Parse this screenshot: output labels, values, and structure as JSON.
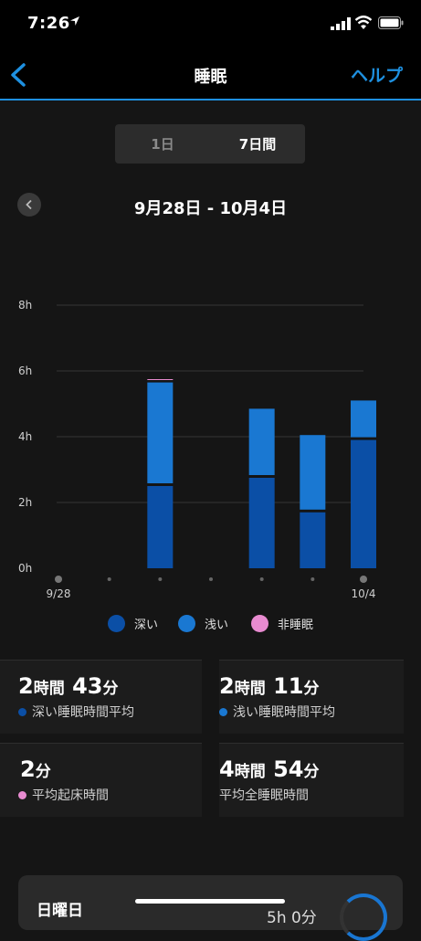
{
  "status_bar": {
    "time": "7:26"
  },
  "nav": {
    "title": "睡眠",
    "help_label": "ヘルプ"
  },
  "segment": {
    "day_label": "1日",
    "week_label": "7日間"
  },
  "date_range": "9月28日 - 10月4日",
  "chart_data": {
    "type": "bar",
    "stacked": true,
    "categories": [
      "9/28",
      "9/29",
      "9/30",
      "10/1",
      "10/2",
      "10/3",
      "10/4"
    ],
    "x_tick_labels_shown": [
      "9/28",
      "10/4"
    ],
    "ylim": [
      0,
      8
    ],
    "yticks": [
      0,
      2,
      4,
      6,
      8
    ],
    "ytick_labels": [
      "0h",
      "2h",
      "4h",
      "6h",
      "8h"
    ],
    "grid": true,
    "series": [
      {
        "name": "深い",
        "color": "#0b4fa6",
        "values": [
          0,
          0,
          2.5,
          0,
          2.75,
          1.7,
          3.9
        ]
      },
      {
        "name": "浅い",
        "color": "#1a78d2",
        "values": [
          0,
          0,
          3.15,
          0,
          2.1,
          2.35,
          1.2
        ]
      },
      {
        "name": "非睡眠",
        "color": "#e88bd0",
        "values": [
          0,
          0,
          0.1,
          0,
          0,
          0,
          0
        ]
      }
    ],
    "legend_position": "bottom"
  },
  "stats": {
    "deep": {
      "num1": "2",
      "unit1": "時間",
      "num2": "43",
      "unit2": "分",
      "label": "深い睡眠時間平均",
      "color": "#0b4fa6"
    },
    "light": {
      "num1": "2",
      "unit1": "時間",
      "num2": "11",
      "unit2": "分",
      "label": "浅い睡眠時間平均",
      "color": "#1a78d2"
    },
    "awake": {
      "num1": "2",
      "unit1": "分",
      "label": "平均起床時間",
      "color": "#e88bd0"
    },
    "total": {
      "num1": "4",
      "unit1": "時間",
      "num2": "54",
      "unit2": "分",
      "label": "平均全睡眠時間"
    }
  },
  "bottom_card": {
    "day": "日曜日",
    "value": "5h 0分"
  },
  "colors": {
    "accent": "#1e90e0",
    "background": "#151515"
  },
  "icons": [
    "location-arrow-icon",
    "cellular-signal-icon",
    "wifi-icon",
    "battery-icon",
    "back-chevron-icon",
    "chevron-left-icon"
  ]
}
